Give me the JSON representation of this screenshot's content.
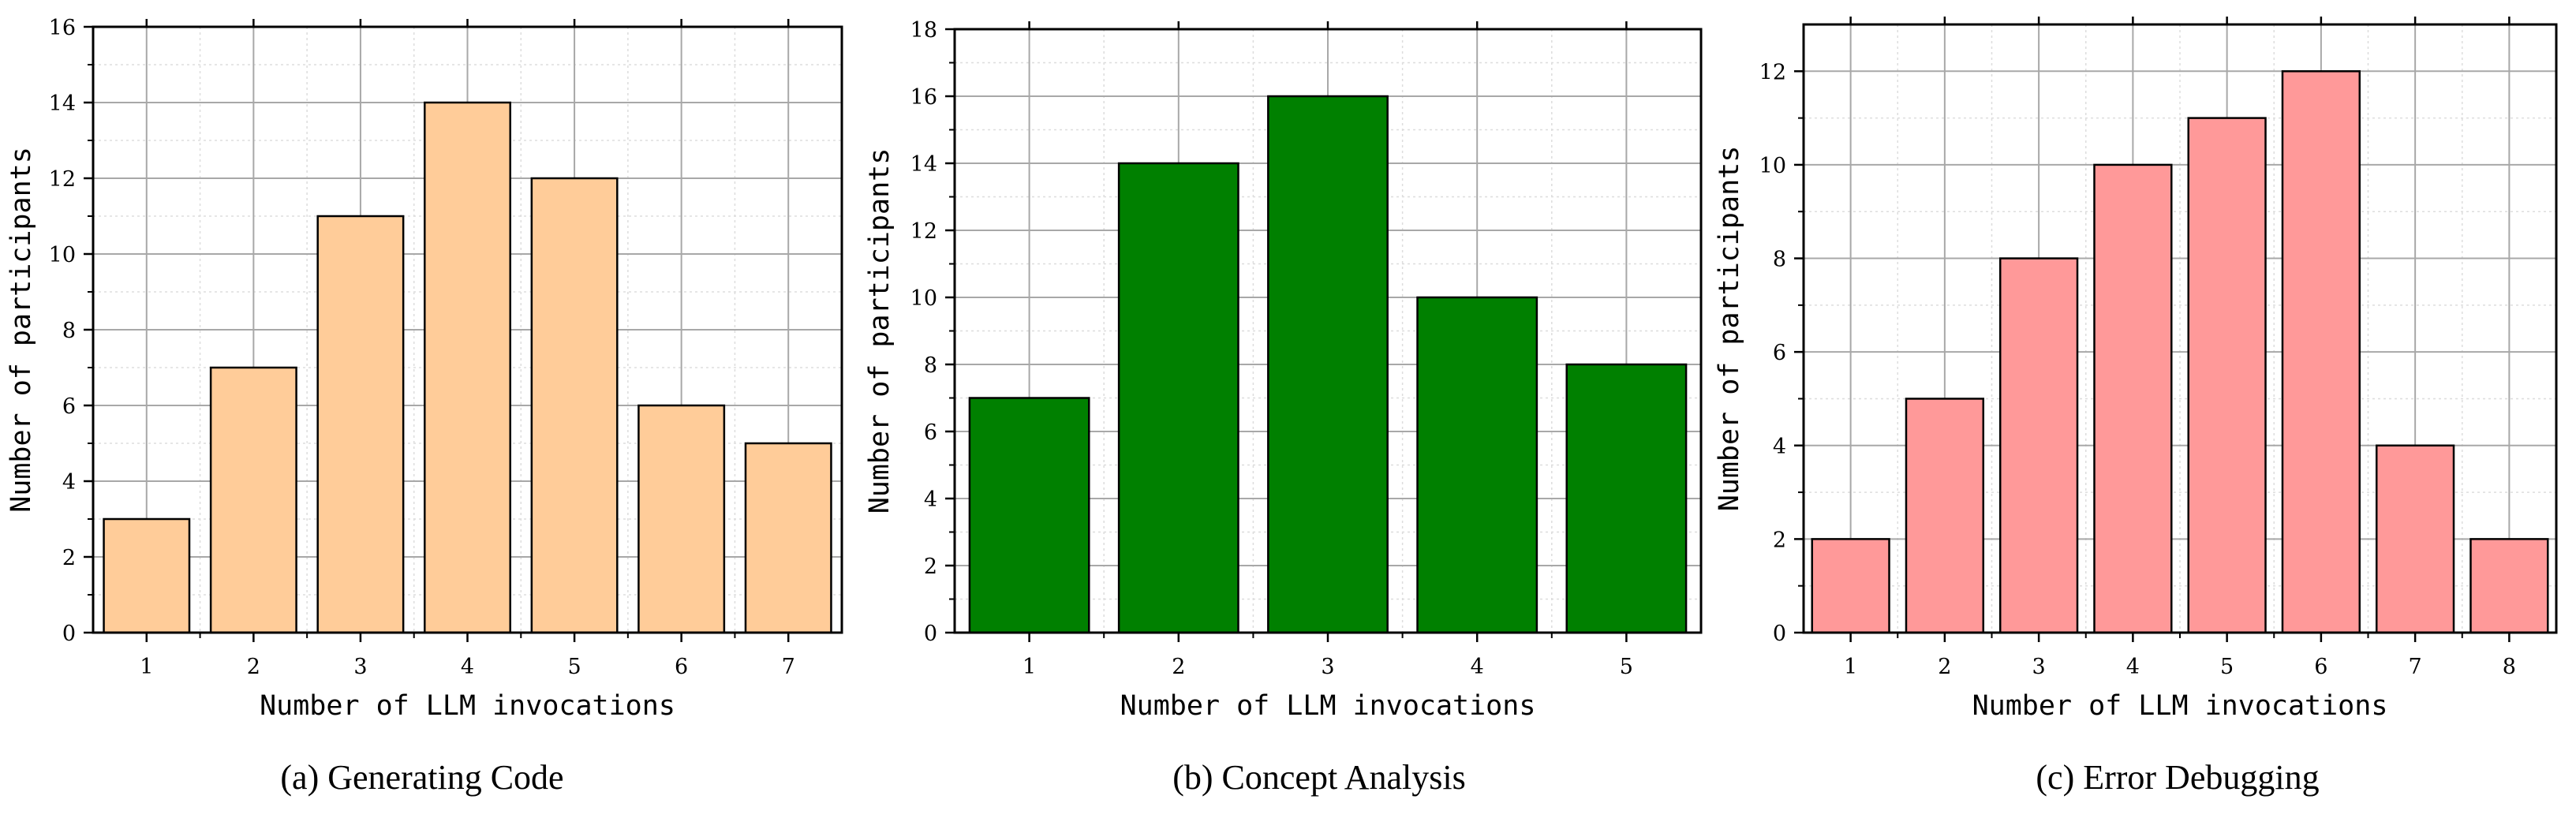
{
  "chart_data": [
    {
      "type": "bar",
      "caption": "(a)  Generating Code",
      "categories": [
        "1",
        "2",
        "3",
        "4",
        "5",
        "6",
        "7"
      ],
      "values": [
        3,
        7,
        11,
        14,
        12,
        6,
        5
      ],
      "xlabel": "Number of LLM invocations",
      "ylabel": "Number of participants",
      "ylim": [
        0,
        16
      ],
      "yticks": [
        0,
        2,
        4,
        6,
        8,
        10,
        12,
        14,
        16
      ],
      "bar_color": "#FFCC99",
      "grid": true
    },
    {
      "type": "bar",
      "caption": "(b)  Concept Analysis",
      "categories": [
        "1",
        "2",
        "3",
        "4",
        "5"
      ],
      "values": [
        7,
        14,
        16,
        10,
        8
      ],
      "xlabel": "Number of LLM invocations",
      "ylabel": "Number of participants",
      "ylim": [
        0,
        18
      ],
      "yticks": [
        0,
        2,
        4,
        6,
        8,
        10,
        12,
        14,
        16,
        18
      ],
      "bar_color": "#008000",
      "grid": true
    },
    {
      "type": "bar",
      "caption": "(c)  Error Debugging",
      "categories": [
        "1",
        "2",
        "3",
        "4",
        "5",
        "6",
        "7",
        "8"
      ],
      "values": [
        2,
        5,
        8,
        10,
        11,
        12,
        4,
        2
      ],
      "xlabel": "Number of LLM invocations",
      "ylabel": "Number of participants",
      "ylim": [
        0,
        13
      ],
      "yticks": [
        0,
        2,
        4,
        6,
        8,
        10,
        12
      ],
      "bar_color": "#FF9999",
      "grid": true
    }
  ]
}
